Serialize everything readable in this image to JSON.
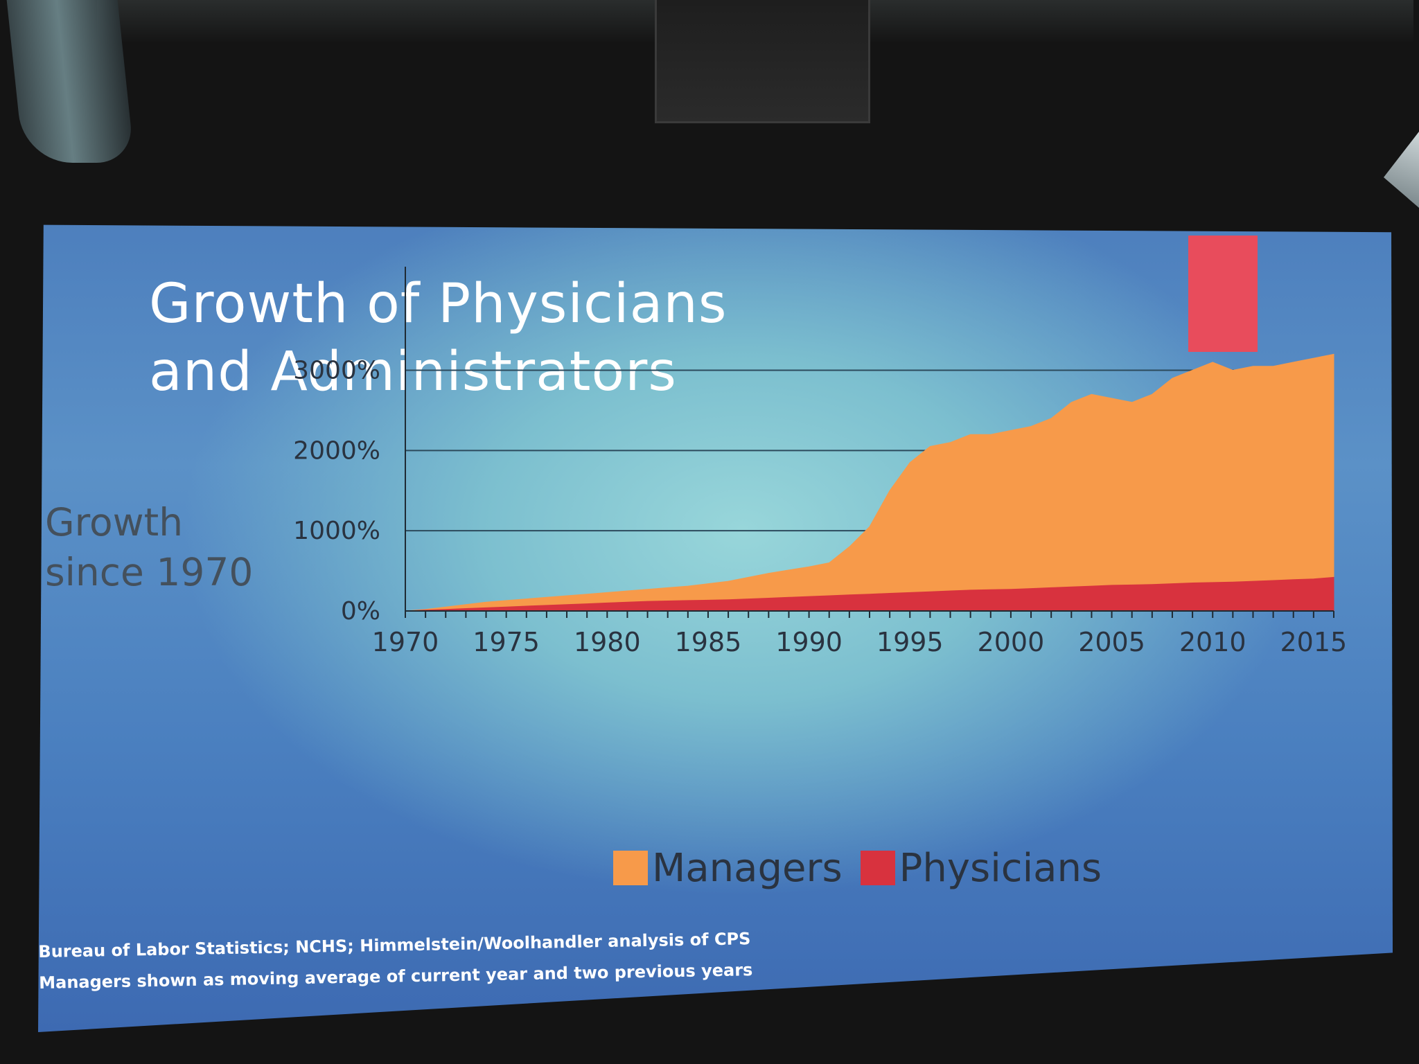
{
  "slide": {
    "title": "Growth of Physicians\nand Administrators",
    "y_title": "Growth\nsince 1970",
    "footnotes": [
      "Bureau of Labor Statistics; NCHS; Himmelstein/Woolhandler analysis of CPS",
      "Managers shown as moving average of current year and two previous years"
    ],
    "colors": {
      "managers": "#f79a4a",
      "physicians": "#d8323e",
      "accent_bar": "#e84c5c",
      "gridline": "#2c4a5c",
      "axis_text": "#2a3340"
    }
  },
  "chart_data": {
    "type": "area",
    "title": "",
    "xlabel": "",
    "ylabel": "Growth since 1970",
    "x": [
      1970,
      1971,
      1972,
      1973,
      1974,
      1975,
      1976,
      1977,
      1978,
      1979,
      1980,
      1981,
      1982,
      1983,
      1984,
      1985,
      1986,
      1987,
      1988,
      1989,
      1990,
      1991,
      1992,
      1993,
      1994,
      1995,
      1996,
      1997,
      1998,
      1999,
      2000,
      2001,
      2002,
      2003,
      2004,
      2005,
      2006,
      2007,
      2008,
      2009,
      2010,
      2011,
      2012,
      2013,
      2014,
      2015,
      2016
    ],
    "xticks": [
      "1970",
      "1975",
      "1980",
      "1985",
      "1990",
      "1995",
      "2000",
      "2005",
      "2010",
      "2015"
    ],
    "yticks": [
      "0%",
      "1000%",
      "2000%",
      "3000%"
    ],
    "ylim": [
      0,
      3600
    ],
    "grid": true,
    "legend_position": "bottom",
    "series": [
      {
        "name": "Managers",
        "values": [
          0,
          20,
          50,
          80,
          110,
          130,
          150,
          170,
          190,
          210,
          230,
          250,
          270,
          290,
          310,
          340,
          370,
          420,
          470,
          510,
          550,
          600,
          800,
          1050,
          1500,
          1850,
          2050,
          2100,
          2200,
          2200,
          2250,
          2300,
          2400,
          2600,
          2700,
          2650,
          2600,
          2700,
          2900,
          3000,
          3100,
          3000,
          3050,
          3050,
          3100,
          3150,
          3200
        ]
      },
      {
        "name": "Physicians",
        "values": [
          0,
          10,
          20,
          30,
          40,
          50,
          60,
          70,
          80,
          90,
          100,
          110,
          120,
          125,
          130,
          135,
          140,
          150,
          160,
          170,
          180,
          190,
          200,
          210,
          220,
          230,
          240,
          250,
          260,
          265,
          270,
          280,
          290,
          300,
          310,
          320,
          325,
          330,
          340,
          350,
          355,
          360,
          370,
          380,
          390,
          400,
          420
        ]
      }
    ]
  }
}
